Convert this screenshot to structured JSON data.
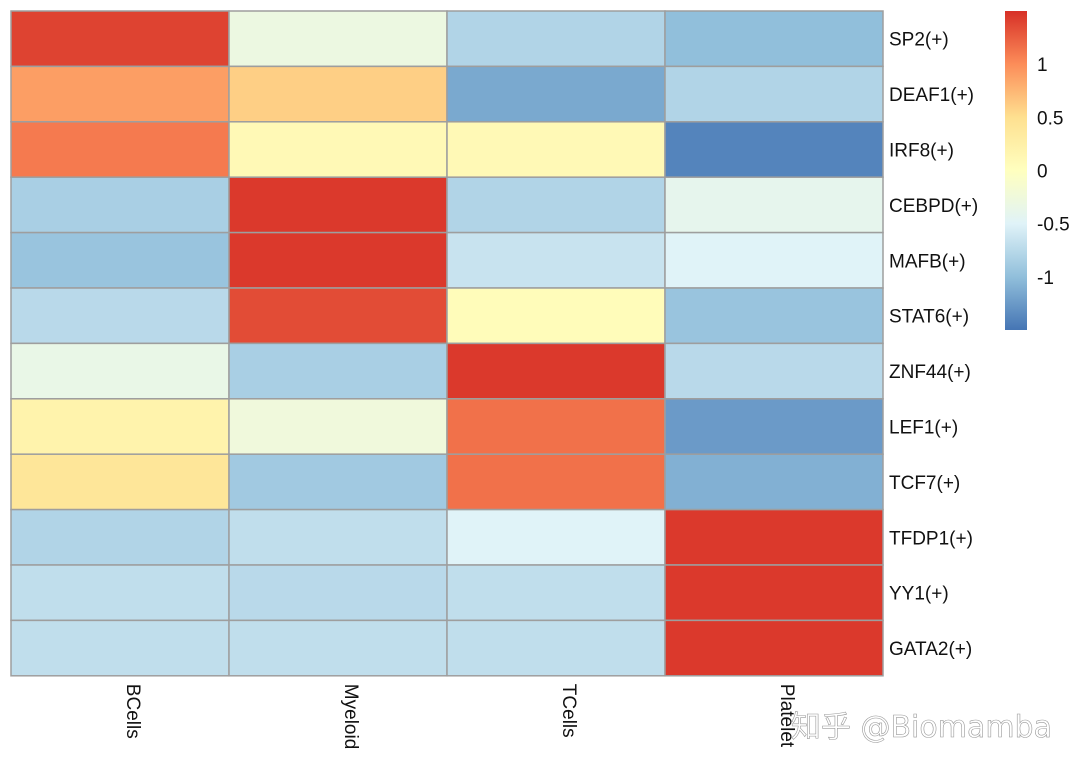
{
  "chart_data": {
    "type": "heatmap",
    "title": "",
    "xlabel": "",
    "ylabel": "",
    "columns": [
      "BCells",
      "Myeloid",
      "TCells",
      "Platelet"
    ],
    "rows": [
      "SP2(+)",
      "DEAF1(+)",
      "IRF8(+)",
      "CEBPD(+)",
      "MAFB(+)",
      "STAT6(+)",
      "ZNF44(+)",
      "LEF1(+)",
      "TCF7(+)",
      "TFDP1(+)",
      "YY1(+)",
      "GATA2(+)"
    ],
    "values": [
      [
        1.4,
        -0.3,
        -0.8,
        -1.0
      ],
      [
        0.9,
        0.6,
        -1.15,
        -0.8
      ],
      [
        1.1,
        0.1,
        0.1,
        -1.4
      ],
      [
        -0.85,
        1.45,
        -0.8,
        -0.4
      ],
      [
        -0.95,
        1.45,
        -0.65,
        -0.5
      ],
      [
        -0.75,
        1.35,
        0.05,
        -0.95
      ],
      [
        -0.35,
        -0.85,
        1.45,
        -0.75
      ],
      [
        0.2,
        -0.25,
        1.15,
        -1.25
      ],
      [
        0.4,
        -0.9,
        1.15,
        -1.1
      ],
      [
        -0.8,
        -0.7,
        -0.5,
        1.45
      ],
      [
        -0.7,
        -0.75,
        -0.7,
        1.45
      ],
      [
        -0.7,
        -0.7,
        -0.7,
        1.45
      ]
    ],
    "color_scale": {
      "min": -1.5,
      "max": 1.5,
      "stops": [
        "#4575B4",
        "#91BFDB",
        "#E0F3F8",
        "#FFFFBF",
        "#FEE090",
        "#FC8D59",
        "#D73027"
      ],
      "ticks": [
        1,
        0.5,
        0,
        -0.5,
        -1
      ],
      "tick_labels": [
        "1",
        "0.5",
        "0",
        "-0.5",
        "-1"
      ]
    },
    "legend": "right",
    "grid": true
  },
  "watermark": {
    "text": "知乎 @Biomamba"
  }
}
